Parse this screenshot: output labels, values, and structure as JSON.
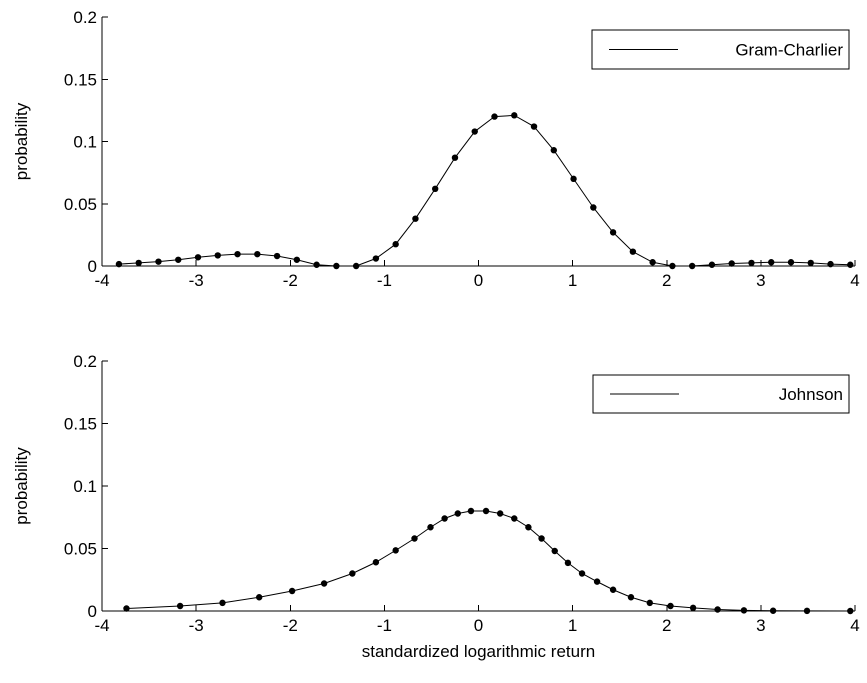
{
  "chart_data": [
    {
      "type": "line",
      "title": "",
      "xlabel": "",
      "ylabel": "probability",
      "xlim": [
        -4,
        4
      ],
      "ylim": [
        0,
        0.2
      ],
      "xticks": [
        -4,
        -3,
        -2,
        -1,
        0,
        1,
        2,
        3,
        4
      ],
      "xtick_labels": [
        "-4",
        "-3",
        "-2",
        "-1",
        "0",
        "1",
        "2",
        "3",
        "4"
      ],
      "yticks": [
        0,
        0.05,
        0.1,
        0.15,
        0.2
      ],
      "ytick_labels": [
        "0",
        "0.05",
        "0.1",
        "0.15",
        "0.2"
      ],
      "grid": false,
      "legend_position": "top-right",
      "series": [
        {
          "name": "Gram-Charlier",
          "color": "#000000",
          "marker": "dot",
          "x": [
            -3.82,
            -3.61,
            -3.4,
            -3.19,
            -2.98,
            -2.77,
            -2.56,
            -2.35,
            -2.14,
            -1.93,
            -1.72,
            -1.51,
            -1.3,
            -1.09,
            -0.88,
            -0.67,
            -0.46,
            -0.25,
            -0.04,
            0.17,
            0.38,
            0.59,
            0.8,
            1.01,
            1.22,
            1.43,
            1.64,
            1.85,
            2.06,
            2.27,
            2.48,
            2.69,
            2.9,
            3.11,
            3.32,
            3.53,
            3.74,
            3.95
          ],
          "y": [
            0.0015,
            0.0025,
            0.0035,
            0.005,
            0.007,
            0.0085,
            0.0095,
            0.0095,
            0.008,
            0.005,
            0.001,
            0.0,
            0.0,
            0.006,
            0.0175,
            0.038,
            0.062,
            0.087,
            0.108,
            0.12,
            0.121,
            0.112,
            0.093,
            0.07,
            0.047,
            0.027,
            0.0115,
            0.003,
            0.0,
            0.0,
            0.001,
            0.002,
            0.0025,
            0.003,
            0.003,
            0.0025,
            0.0015,
            0.001
          ]
        }
      ]
    },
    {
      "type": "line",
      "title": "",
      "xlabel": "standardized logarithmic return",
      "ylabel": "probability",
      "xlim": [
        -4,
        4
      ],
      "ylim": [
        0,
        0.2
      ],
      "xticks": [
        -4,
        -3,
        -2,
        -1,
        0,
        1,
        2,
        3,
        4
      ],
      "xtick_labels": [
        "-4",
        "-3",
        "-2",
        "-1",
        "0",
        "1",
        "2",
        "3",
        "4"
      ],
      "yticks": [
        0,
        0.05,
        0.1,
        0.15,
        0.2
      ],
      "ytick_labels": [
        "0",
        "0.05",
        "0.1",
        "0.15",
        "0.2"
      ],
      "grid": false,
      "legend_position": "top-right",
      "series": [
        {
          "name": "Johnson",
          "color": "#000000",
          "marker": "dot",
          "x": [
            -3.74,
            -3.17,
            -2.72,
            -2.33,
            -1.98,
            -1.64,
            -1.34,
            -1.09,
            -0.88,
            -0.68,
            -0.51,
            -0.36,
            -0.22,
            -0.08,
            0.08,
            0.23,
            0.38,
            0.53,
            0.67,
            0.81,
            0.95,
            1.1,
            1.26,
            1.43,
            1.62,
            1.82,
            2.04,
            2.28,
            2.54,
            2.82,
            3.13,
            3.49,
            3.95
          ],
          "y": [
            0.002,
            0.004,
            0.0065,
            0.011,
            0.016,
            0.022,
            0.03,
            0.039,
            0.0485,
            0.058,
            0.067,
            0.074,
            0.078,
            0.08,
            0.08,
            0.078,
            0.074,
            0.067,
            0.058,
            0.048,
            0.0385,
            0.03,
            0.0235,
            0.017,
            0.011,
            0.0065,
            0.004,
            0.0025,
            0.0012,
            0.0005,
            0.0002,
            0.0001,
            0.0
          ]
        }
      ]
    }
  ]
}
